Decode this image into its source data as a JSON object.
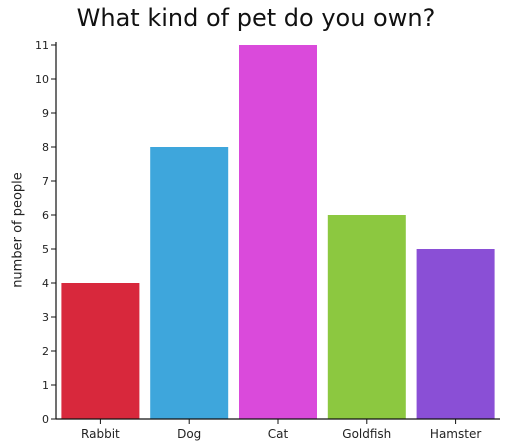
{
  "chart_data": {
    "type": "bar",
    "title": "What kind of pet do you own?",
    "xlabel": "",
    "ylabel": "number of people",
    "categories": [
      "Rabbit",
      "Dog",
      "Cat",
      "Goldfish",
      "Hamster"
    ],
    "values": [
      4,
      8,
      11,
      6,
      5
    ],
    "colors": [
      "#d8283c",
      "#3ea6dc",
      "#da4adb",
      "#8cc840",
      "#8a4fd6"
    ],
    "ylim": [
      0,
      11
    ],
    "yticks": [
      0,
      1,
      2,
      3,
      4,
      5,
      6,
      7,
      8,
      9,
      10,
      11
    ],
    "grid": false,
    "legend": "none"
  }
}
